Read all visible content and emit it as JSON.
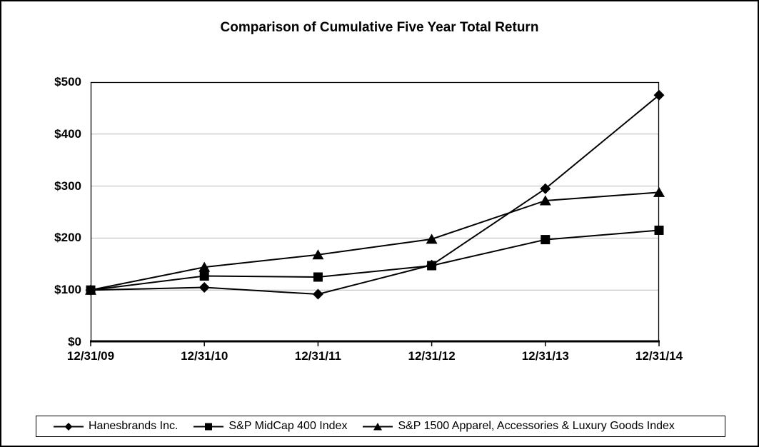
{
  "chart_data": {
    "type": "line",
    "title": "Comparison of Cumulative Five Year Total Return",
    "categories": [
      "12/31/09",
      "12/31/10",
      "12/31/11",
      "12/31/12",
      "12/31/13",
      "12/31/14"
    ],
    "series": [
      {
        "name": "Hanesbrands Inc.",
        "marker": "diamond",
        "values": [
          100,
          105,
          92,
          148,
          295,
          475
        ]
      },
      {
        "name": "S&P MidCap 400 Index",
        "marker": "square",
        "values": [
          100,
          127,
          125,
          147,
          197,
          215
        ]
      },
      {
        "name": "S&P 1500 Apparel, Accessories & Luxury Goods Index",
        "marker": "triangle",
        "values": [
          100,
          144,
          168,
          198,
          272,
          288
        ]
      }
    ],
    "xlabel": "",
    "ylabel": "",
    "ylim": [
      0,
      500
    ],
    "y_ticks": [
      "$0",
      "$100",
      "$200",
      "$300",
      "$400",
      "$500"
    ],
    "y_tick_values": [
      0,
      100,
      200,
      300,
      400,
      500
    ],
    "grid": "horizontal-major",
    "legend_position": "bottom",
    "line_color": "#000000",
    "marker_color": "#000000",
    "grid_color": "#b8b8b8",
    "axis_color": "#000000"
  }
}
